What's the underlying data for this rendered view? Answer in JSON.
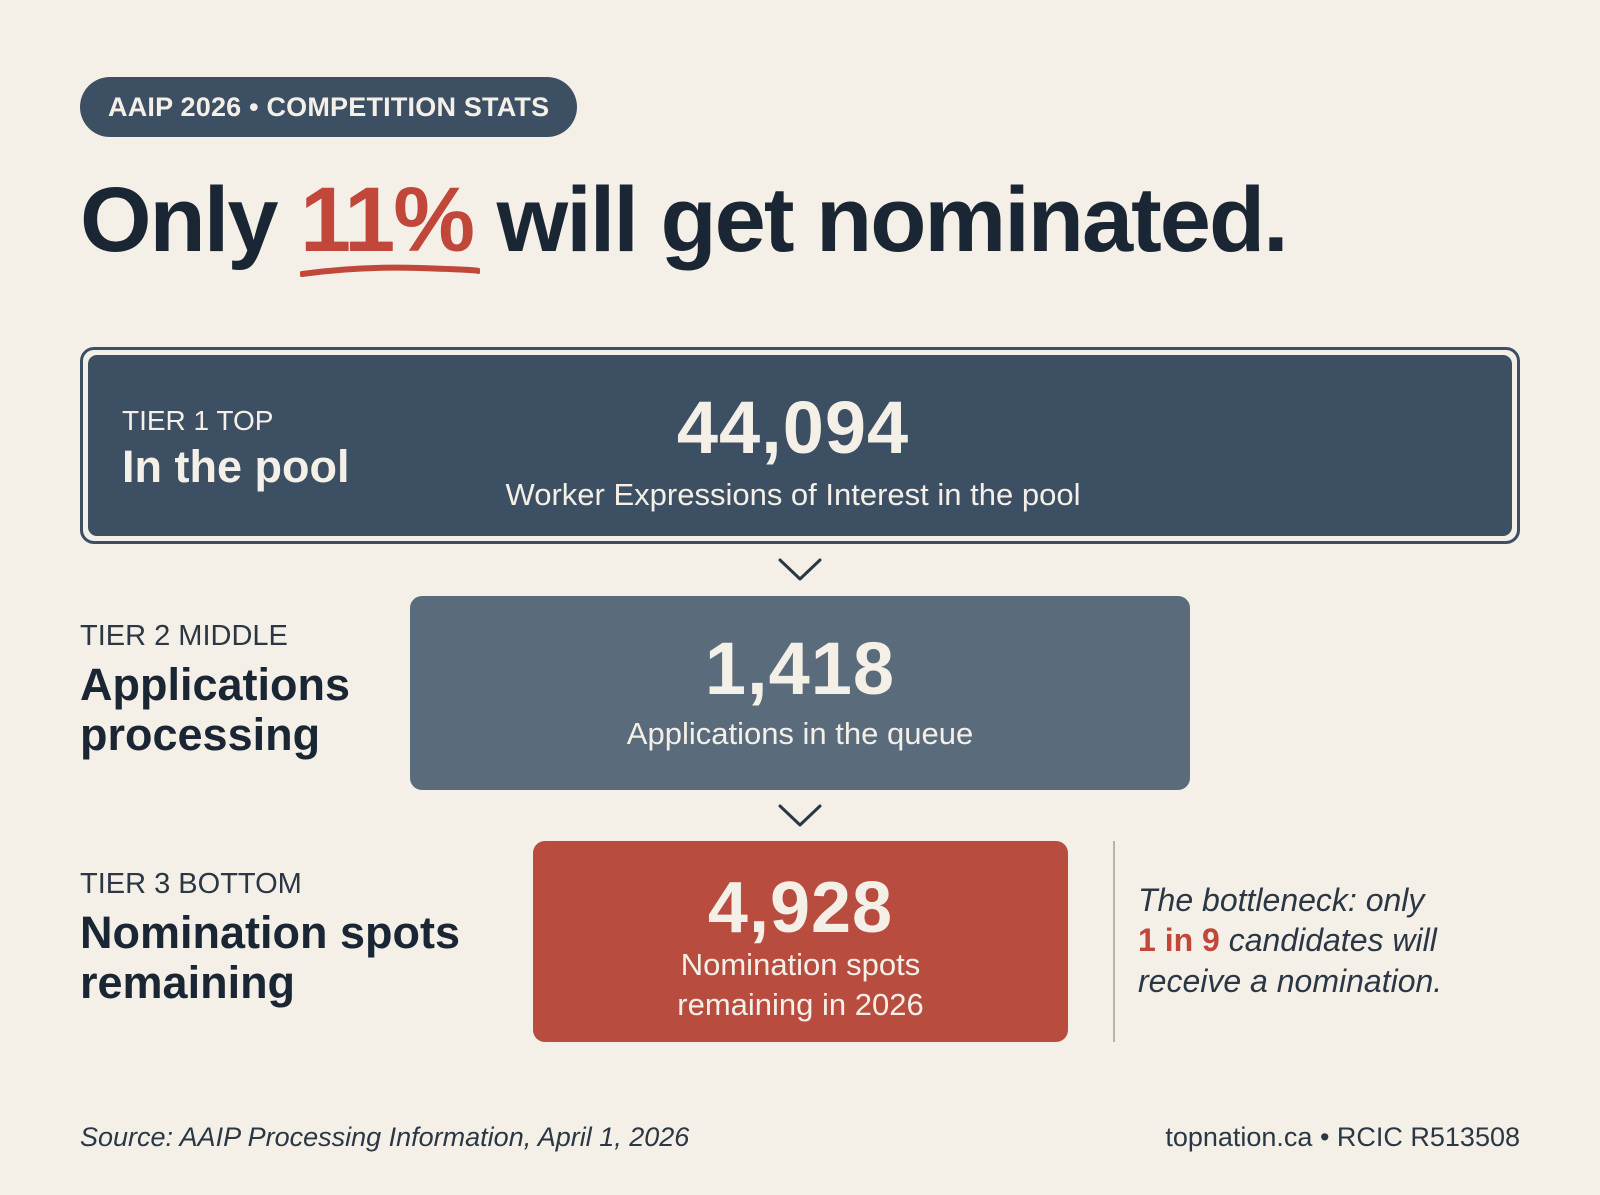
{
  "badge": "AAIP 2026 • COMPETITION STATS",
  "headline": {
    "prefix": "Only ",
    "highlight": "11%",
    "suffix": " will get nominated."
  },
  "tiers": [
    {
      "tag": "TIER 1 TOP",
      "title": "In the pool",
      "value": "44,094",
      "description": "Worker Expressions of Interest in the pool"
    },
    {
      "tag": "TIER 2 MIDDLE",
      "title_lines": [
        "Applications",
        "processing"
      ],
      "value": "1,418",
      "description": "Applications in the queue"
    },
    {
      "tag": "TIER 3 BOTTOM",
      "title_lines": [
        "Nomination spots",
        "remaining"
      ],
      "value": "4,928",
      "description_lines": [
        "Nomination spots",
        "remaining in 2026"
      ]
    }
  ],
  "note": {
    "line1": "The bottleneck: only",
    "highlight": "1 in 9",
    "line2_rest": " candidates will",
    "line3": "receive a nomination."
  },
  "footer": {
    "source": "Source: AAIP Processing Information, April 1, 2026",
    "credit": "topnation.ca • RCIC R513508"
  },
  "colors": {
    "background": "#f4f0e8",
    "navy": "#3d4f62",
    "slate": "#5a6b7c",
    "accent_red": "#b84c3e"
  }
}
